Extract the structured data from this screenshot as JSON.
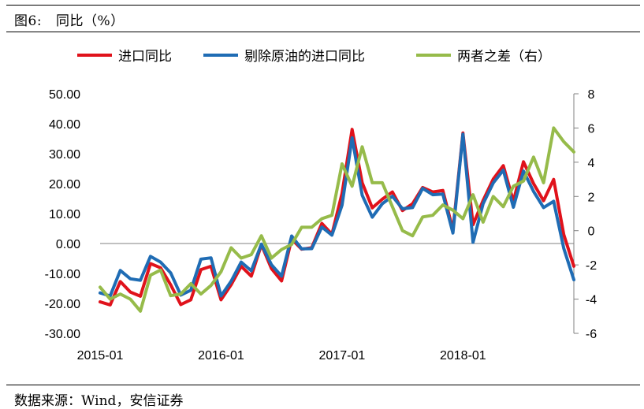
{
  "figure": {
    "label": "图6:",
    "title": "同比（%）",
    "source": "数据来源：Wind，安信证券"
  },
  "colors": {
    "series_red": "#e0121b",
    "series_blue": "#1f6cb4",
    "series_green": "#96bb4a"
  },
  "chart_data": {
    "type": "line",
    "x": [
      "2015-01",
      "2015-02",
      "2015-03",
      "2015-04",
      "2015-05",
      "2015-06",
      "2015-07",
      "2015-08",
      "2015-09",
      "2015-10",
      "2015-11",
      "2015-12",
      "2016-01",
      "2016-02",
      "2016-03",
      "2016-04",
      "2016-05",
      "2016-06",
      "2016-07",
      "2016-08",
      "2016-09",
      "2016-10",
      "2016-11",
      "2016-12",
      "2017-01",
      "2017-02",
      "2017-03",
      "2017-04",
      "2017-05",
      "2017-06",
      "2017-07",
      "2017-08",
      "2017-09",
      "2017-10",
      "2017-11",
      "2017-12",
      "2018-01",
      "2018-02",
      "2018-03",
      "2018-04",
      "2018-05",
      "2018-06",
      "2018-07",
      "2018-08",
      "2018-09",
      "2018-10",
      "2018-11",
      "2018-12"
    ],
    "x_tick_labels": [
      "2015-01",
      "2016-01",
      "2017-01",
      "2018-01"
    ],
    "series": [
      {
        "name": "进口同比",
        "axis": "left",
        "color": "#e0121b",
        "values": [
          -19.5,
          -20.5,
          -12.7,
          -16.2,
          -17.6,
          -6.7,
          -8.1,
          -13.8,
          -20.4,
          -18.8,
          -8.7,
          -7.6,
          -18.8,
          -13.8,
          -7.6,
          -10.9,
          -0.4,
          -8.4,
          -12.5,
          1.5,
          -1.9,
          -1.4,
          6.7,
          3.1,
          16.7,
          38.1,
          20.3,
          11.9,
          14.8,
          17.2,
          11.0,
          13.3,
          18.7,
          17.2,
          17.7,
          4.5,
          36.9,
          6.3,
          14.4,
          21.5,
          26.0,
          14.1,
          27.3,
          20.0,
          14.3,
          21.4,
          3.0,
          -7.6
        ]
      },
      {
        "name": "剔除原油的进口同比",
        "axis": "left",
        "color": "#1f6cb4",
        "values": [
          -16.5,
          -17.5,
          -9.0,
          -11.8,
          -12.3,
          -4.3,
          -6.2,
          -9.8,
          -17.2,
          -15.6,
          -5.2,
          -4.8,
          -17.5,
          -12.6,
          -6.2,
          -9.1,
          -0.2,
          -7.1,
          -10.9,
          2.5,
          -1.8,
          -1.7,
          5.5,
          2.8,
          12.8,
          35.3,
          16.1,
          8.8,
          13.3,
          15.8,
          11.6,
          12.0,
          18.4,
          16.3,
          16.5,
          3.5,
          36.5,
          0.4,
          13.3,
          20.2,
          24.5,
          12.1,
          24.2,
          17.4,
          12.0,
          14.1,
          -1.6,
          -12.1
        ]
      },
      {
        "name": "两者之差（右）",
        "axis": "right",
        "color": "#96bb4a",
        "values": [
          -3.3,
          -4.0,
          -3.7,
          -4.0,
          -4.7,
          -2.6,
          -2.3,
          -3.8,
          -3.7,
          -3.1,
          -3.7,
          -3.2,
          -2.4,
          -1.0,
          -1.6,
          -1.4,
          -0.3,
          -1.6,
          -1.1,
          -0.8,
          0.2,
          0.2,
          0.7,
          0.9,
          3.9,
          2.6,
          4.9,
          2.8,
          2.8,
          1.4,
          0.0,
          -0.3,
          0.8,
          0.9,
          1.5,
          1.2,
          0.7,
          2.1,
          0.5,
          2.0,
          1.4,
          2.6,
          2.9,
          4.3,
          2.8,
          6.0,
          5.2,
          4.6
        ]
      }
    ],
    "y_left": {
      "min": -30,
      "max": 50,
      "step": 10,
      "labels": [
        "50.00",
        "40.00",
        "30.00",
        "20.00",
        "10.00",
        "0.00",
        "-10.00",
        "-20.00",
        "-30.00"
      ]
    },
    "y_right": {
      "min": -6,
      "max": 8,
      "step": 2,
      "labels": [
        "8",
        "6",
        "4",
        "2",
        "0",
        "-2",
        "-4",
        "-6"
      ]
    },
    "legend_position": "top",
    "grid": false
  }
}
